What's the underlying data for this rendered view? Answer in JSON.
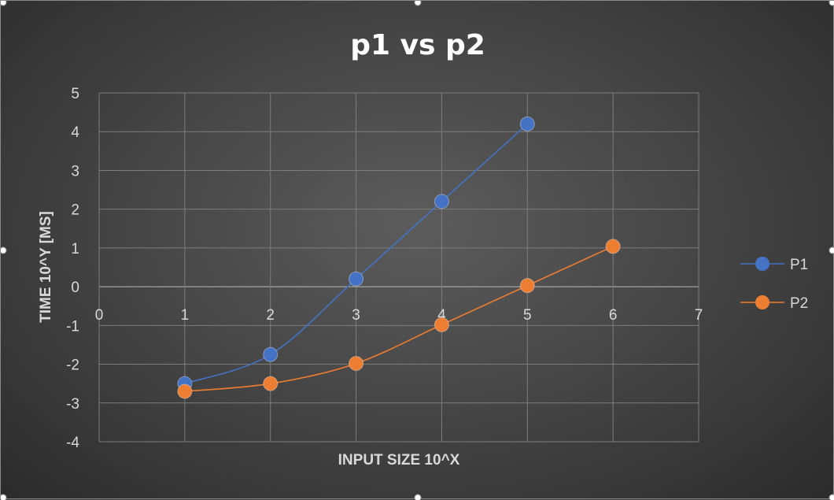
{
  "chart_data": {
    "type": "line",
    "title": "p1 vs p2",
    "xlabel": "INPUT SIZE 10^X",
    "ylabel": "TIME 10^Y [MS]",
    "xlim": [
      0,
      7
    ],
    "ylim": [
      -4,
      5
    ],
    "xticks": [
      0,
      1,
      2,
      3,
      4,
      5,
      6,
      7
    ],
    "yticks": [
      5,
      4,
      3,
      2,
      1,
      0,
      -1,
      -2,
      -3,
      -4
    ],
    "grid": true,
    "legend_position": "right",
    "series": [
      {
        "name": "P1",
        "color": "#4472c4",
        "x": [
          1,
          2,
          3,
          4,
          5
        ],
        "y": [
          -2.5,
          -1.75,
          0.2,
          2.2,
          4.2
        ]
      },
      {
        "name": "P2",
        "color": "#ed7d31",
        "x": [
          1,
          2,
          3,
          4,
          5,
          6
        ],
        "y": [
          -2.7,
          -2.5,
          -1.98,
          -0.98,
          0.03,
          1.04
        ]
      }
    ]
  }
}
